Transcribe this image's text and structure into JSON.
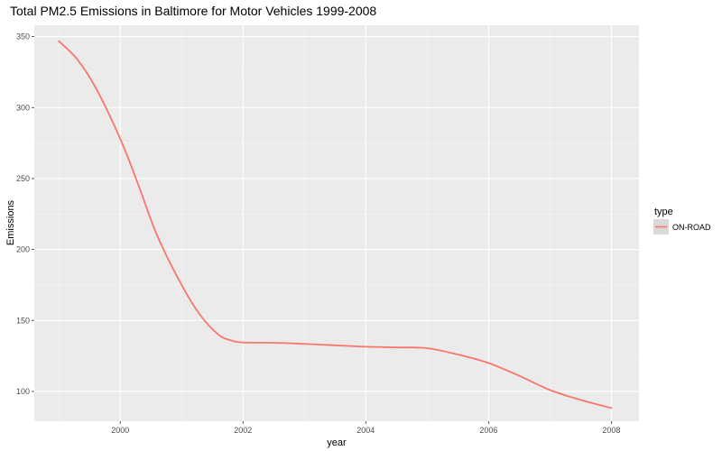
{
  "chart_data": {
    "type": "line",
    "title": "Total PM2.5 Emissions in Baltimore for Motor Vehicles 1999-2008",
    "xlabel": "year",
    "ylabel": "Emissions",
    "xlim": [
      1998.6,
      2008.45
    ],
    "ylim": [
      79,
      358
    ],
    "x_ticks": [
      2000,
      2002,
      2004,
      2006,
      2008
    ],
    "x_tick_labels": [
      "2000",
      "2002",
      "2004",
      "2006",
      "2008"
    ],
    "y_ticks": [
      100,
      150,
      200,
      250,
      300,
      350
    ],
    "y_tick_labels": [
      "100",
      "150",
      "200",
      "250",
      "300",
      "350"
    ],
    "grid": true,
    "legend": {
      "title": "type",
      "position": "right",
      "entries": [
        "ON-ROAD"
      ]
    },
    "series": [
      {
        "name": "ON-ROAD",
        "color": "#f8766d",
        "smooth": true,
        "x": [
          1999,
          1999.3,
          1999.6,
          2000,
          2000.3,
          2000.6,
          2001,
          2001.3,
          2001.6,
          2001.8,
          2002,
          2002.5,
          2003,
          2003.5,
          2004,
          2004.5,
          2005,
          2005.5,
          2006,
          2006.5,
          2007,
          2007.5,
          2008
        ],
        "y": [
          346.8,
          334,
          314,
          278,
          245,
          210,
          175,
          154,
          140,
          136,
          134.5,
          134.3,
          133.5,
          132.5,
          131.5,
          131,
          130.5,
          126,
          120,
          111,
          101,
          94,
          88.3
        ]
      }
    ]
  }
}
